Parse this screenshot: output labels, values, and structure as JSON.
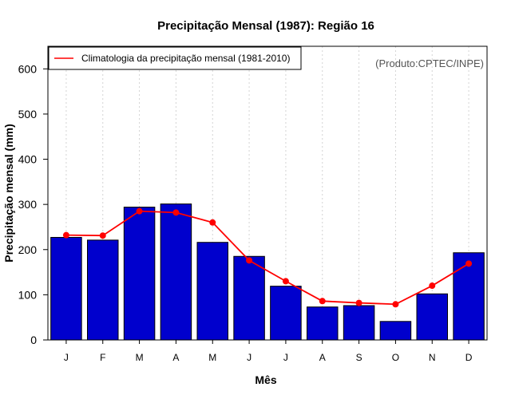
{
  "chart_data": {
    "type": "bar",
    "title": "Precipitação Mensal (1987): Região 16",
    "xlabel": "Mês",
    "ylabel": "Precipitação mensal (mm)",
    "categories": [
      "J",
      "F",
      "M",
      "A",
      "M",
      "J",
      "J",
      "A",
      "S",
      "O",
      "N",
      "D"
    ],
    "series": [
      {
        "name": "Precipitação mensal (1987)",
        "kind": "bar",
        "color": "#0000CD",
        "values": [
          227,
          221,
          294,
          301,
          216,
          185,
          119,
          73,
          76,
          41,
          102,
          193
        ]
      },
      {
        "name": "Climatologia da precipitação mensal (1981-2010)",
        "kind": "line",
        "color": "#FF0000",
        "values": [
          232,
          231,
          285,
          282,
          260,
          176,
          130,
          86,
          82,
          79,
          120,
          169
        ]
      }
    ],
    "ylim": [
      0,
      650
    ],
    "yticks": [
      0,
      100,
      200,
      300,
      400,
      500,
      600
    ],
    "grid": "vertical dotted",
    "legend": {
      "position": "top-left",
      "entries": [
        "Climatologia da precipitação mensal (1981-2010)"
      ]
    },
    "annotation": "(Produto:CPTEC/INPE)",
    "annotation_color": "#555555"
  }
}
